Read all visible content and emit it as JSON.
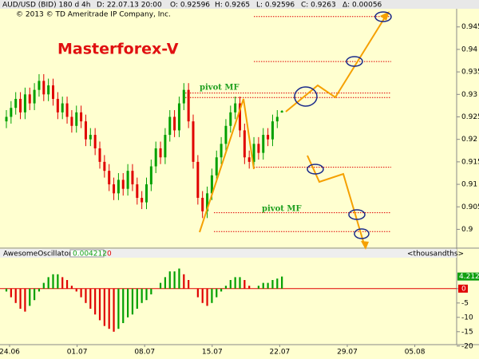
{
  "chart_data": [
    {
      "type": "candlestick",
      "header": [
        "AUD/USD (BID) 180 d 4h",
        "D: 22.07.13 20:00",
        "O: 0.92596",
        "H: 0.9265",
        "L: 0.92596",
        "C: 0.9263",
        "Δ: 0.00056"
      ],
      "copyright": "© 2013 © TD Ameritrade IP Company, Inc.",
      "title": "Masterforex-V",
      "annotations": [
        "pivot MF",
        "pivot MF"
      ],
      "open": [
        0.924,
        0.925,
        0.927,
        0.929,
        0.926,
        0.93,
        0.928,
        0.931,
        0.933,
        0.93,
        0.932,
        0.929,
        0.926,
        0.928,
        0.925,
        0.923,
        0.926,
        0.924,
        0.92,
        0.921,
        0.918,
        0.915,
        0.913,
        0.91,
        0.908,
        0.911,
        0.909,
        0.913,
        0.91,
        0.907,
        0.906,
        0.91,
        0.914,
        0.918,
        0.916,
        0.921,
        0.925,
        0.922,
        0.928,
        0.931,
        0.924,
        0.915,
        0.907,
        0.904,
        0.908,
        0.912,
        0.916,
        0.919,
        0.923,
        0.926,
        0.928,
        0.922,
        0.916,
        0.915,
        0.919,
        0.917,
        0.921,
        0.92,
        0.924,
        0.92596
      ],
      "high": [
        0.9265,
        0.9285,
        0.9305,
        0.9305,
        0.9315,
        0.9315,
        0.9325,
        0.9345,
        0.9345,
        0.9335,
        0.9335,
        0.9305,
        0.9295,
        0.9295,
        0.9265,
        0.9275,
        0.9275,
        0.9255,
        0.9225,
        0.9225,
        0.9195,
        0.9165,
        0.9145,
        0.9115,
        0.9125,
        0.9125,
        0.9145,
        0.9145,
        0.9115,
        0.9085,
        0.9115,
        0.9155,
        0.9195,
        0.9195,
        0.9225,
        0.9265,
        0.9265,
        0.9295,
        0.9325,
        0.9325,
        0.9255,
        0.9165,
        0.9085,
        0.9095,
        0.9135,
        0.9175,
        0.9205,
        0.9245,
        0.9275,
        0.9295,
        0.9295,
        0.9235,
        0.9175,
        0.9205,
        0.9205,
        0.9225,
        0.9225,
        0.9255,
        0.9265,
        0.9265
      ],
      "low": [
        0.9225,
        0.9235,
        0.9255,
        0.9245,
        0.9245,
        0.9265,
        0.9265,
        0.9295,
        0.9285,
        0.9285,
        0.9275,
        0.9245,
        0.9245,
        0.9235,
        0.9215,
        0.9215,
        0.9225,
        0.9185,
        0.9185,
        0.9165,
        0.9135,
        0.9115,
        0.9085,
        0.9065,
        0.9065,
        0.9075,
        0.9075,
        0.9085,
        0.9055,
        0.9045,
        0.9045,
        0.9085,
        0.9125,
        0.9145,
        0.9145,
        0.9195,
        0.9205,
        0.9205,
        0.9265,
        0.9225,
        0.9135,
        0.9055,
        0.9025,
        0.9025,
        0.9065,
        0.9105,
        0.9145,
        0.9175,
        0.9215,
        0.9245,
        0.9205,
        0.9145,
        0.9135,
        0.9135,
        0.9155,
        0.9155,
        0.9185,
        0.9185,
        0.9225,
        0.92596
      ],
      "close": [
        0.925,
        0.927,
        0.929,
        0.926,
        0.93,
        0.928,
        0.931,
        0.933,
        0.93,
        0.932,
        0.929,
        0.926,
        0.928,
        0.925,
        0.923,
        0.926,
        0.924,
        0.92,
        0.921,
        0.918,
        0.915,
        0.913,
        0.91,
        0.908,
        0.911,
        0.909,
        0.913,
        0.91,
        0.907,
        0.906,
        0.91,
        0.914,
        0.918,
        0.916,
        0.921,
        0.925,
        0.922,
        0.928,
        0.931,
        0.924,
        0.915,
        0.907,
        0.904,
        0.908,
        0.912,
        0.916,
        0.919,
        0.923,
        0.926,
        0.928,
        0.922,
        0.916,
        0.915,
        0.919,
        0.917,
        0.921,
        0.92,
        0.924,
        0.925,
        0.9263
      ],
      "up_color": "#00a000",
      "down_color": "#e00000",
      "levels": [
        0.9473,
        0.9373,
        0.9303,
        0.9293,
        0.9138,
        0.9037,
        0.8995
      ],
      "level_color": "#e00000",
      "ylim": [
        0.896,
        0.9485
      ],
      "yticks": [
        0.9,
        0.905,
        0.91,
        0.915,
        0.92,
        0.925,
        0.93,
        0.935,
        0.94,
        0.945
      ]
    },
    {
      "type": "oscillator",
      "title": "AwesomeOscillator",
      "value_text": "0.004212",
      "zero_text": "0",
      "units": "<thousandths>",
      "last_value": 4.212,
      "values": [
        -1,
        -3,
        -5,
        -7,
        -8,
        -6,
        -4,
        -1,
        2,
        4,
        5,
        5,
        4,
        3,
        1,
        -1,
        -3,
        -5,
        -7,
        -9,
        -11,
        -13,
        -14,
        -15,
        -14,
        -12,
        -10,
        -9,
        -7,
        -5,
        -4,
        -2,
        0,
        2,
        4,
        6,
        6,
        7,
        5,
        3,
        0,
        -3,
        -5,
        -6,
        -5,
        -3,
        -1,
        1,
        3,
        4,
        4,
        3,
        1,
        0,
        1,
        2,
        2,
        3,
        3.5,
        4.212
      ],
      "up_color": "#00a000",
      "down_color": "#e00000",
      "ylim": [
        -19.5,
        10.5
      ],
      "yticks": [
        0,
        -5,
        -10,
        -15,
        -20
      ],
      "x_labels": [
        "24.06",
        "01.07",
        "08.07",
        "15.07",
        "22.07",
        "29.07",
        "05.08"
      ]
    }
  ]
}
